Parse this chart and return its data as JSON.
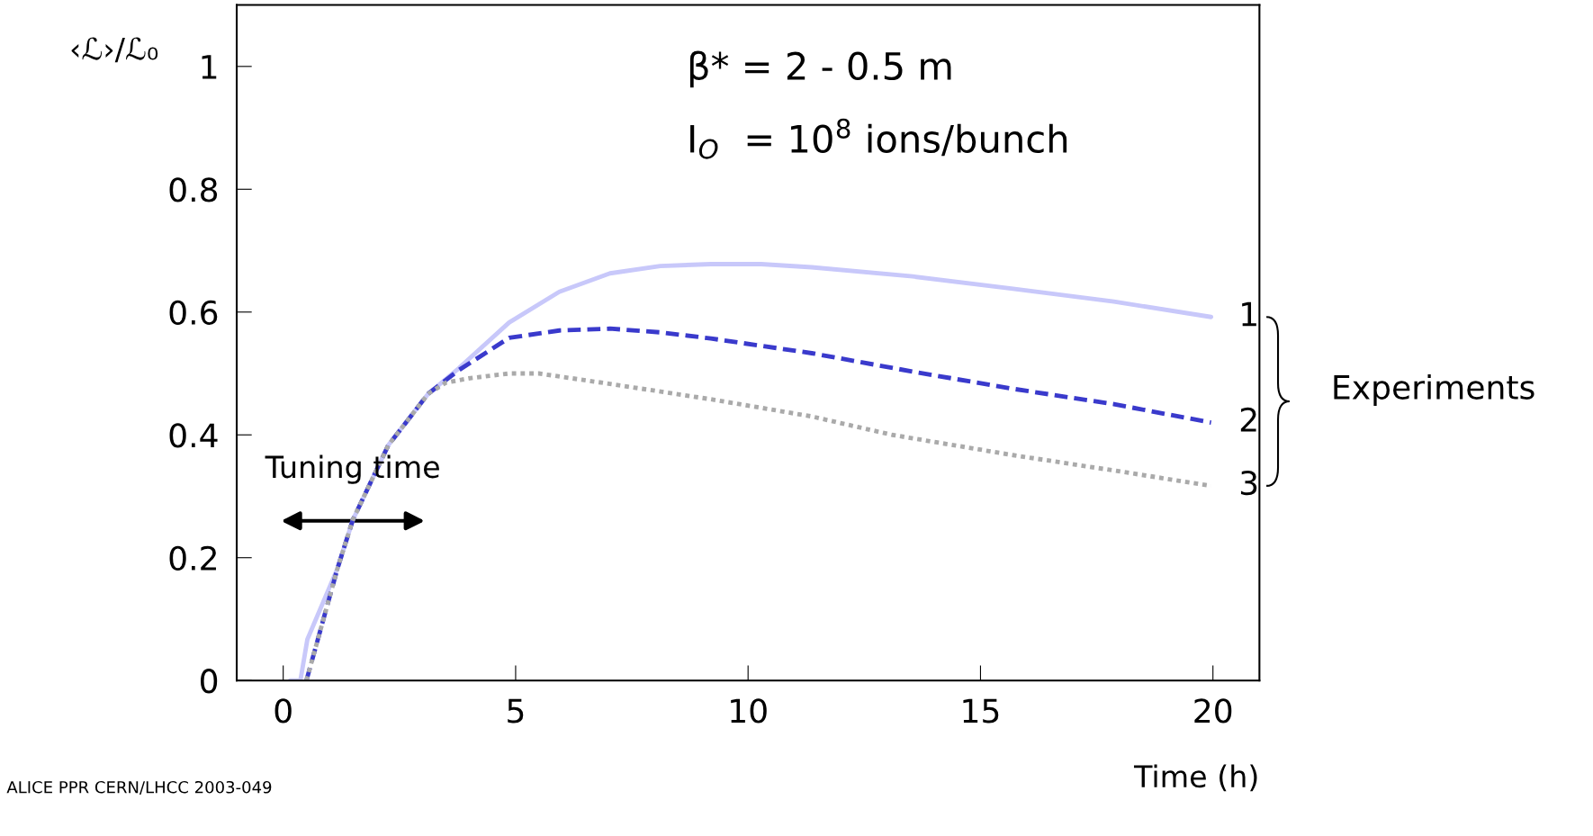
{
  "chart_data": {
    "type": "line",
    "xlabel": "Time (h)",
    "ylabel": "‹ℒ›/ℒ₀",
    "xlim": [
      -1,
      21
    ],
    "ylim": [
      0,
      1.1
    ],
    "xticks": [
      0,
      5,
      10,
      15,
      20
    ],
    "yticks": [
      0,
      0.2,
      0.4,
      0.6,
      0.8,
      1
    ],
    "grid": false,
    "legend": false,
    "series": [
      {
        "name": "1",
        "color": "#c8c8fa",
        "line_style": "solid",
        "x": [
          0.15,
          0.37,
          0.52,
          1.17,
          1.5,
          2.26,
          3.12,
          3.77,
          4.86,
          5.94,
          7.03,
          8.11,
          9.2,
          10.28,
          11.37,
          13.54,
          15.7,
          17.87,
          19.96
        ],
        "values": [
          0,
          0,
          0.067,
          0.183,
          0.262,
          0.383,
          0.467,
          0.508,
          0.583,
          0.633,
          0.663,
          0.675,
          0.678,
          0.678,
          0.673,
          0.658,
          0.638,
          0.617,
          0.592
        ]
      },
      {
        "name": "2",
        "color": "#3a3acc",
        "line_style": "dashed",
        "x": [
          0.5,
          1.17,
          1.5,
          2.26,
          3.12,
          3.77,
          4.86,
          5.94,
          7.03,
          8.11,
          9.2,
          11.37,
          13.54,
          15.7,
          17.87,
          19.96
        ],
        "values": [
          0,
          0.183,
          0.262,
          0.383,
          0.467,
          0.505,
          0.558,
          0.57,
          0.573,
          0.567,
          0.557,
          0.533,
          0.503,
          0.475,
          0.45,
          0.42
        ]
      },
      {
        "name": "3",
        "color": "#aaaaaa",
        "line_style": "dotted",
        "x": [
          0.5,
          1.17,
          1.5,
          2.26,
          3.12,
          3.5,
          3.99,
          4.86,
          5.5,
          7.03,
          9.2,
          11.37,
          13.1,
          15.7,
          17.87,
          19.96
        ],
        "values": [
          0,
          0.183,
          0.262,
          0.383,
          0.467,
          0.485,
          0.492,
          0.5,
          0.5,
          0.483,
          0.458,
          0.43,
          0.4,
          0.367,
          0.342,
          0.317
        ]
      }
    ],
    "annotations": [
      "β* = 2 - 0.5 m",
      "I$_{O}$  = 10$^{8}$ ions/bunch",
      "Experiments",
      {
        "text": "Tuning time",
        "x": 1.5,
        "y": 0.26
      },
      "ALICE PPR CERN/LHCC 2003-049"
    ]
  }
}
